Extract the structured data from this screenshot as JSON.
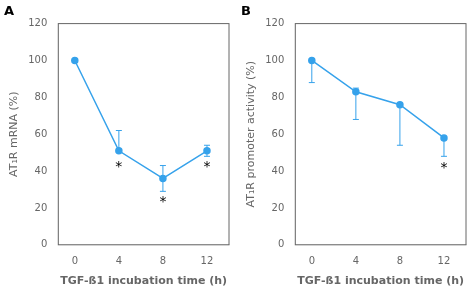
{
  "chart_data": [
    {
      "type": "line",
      "title": "A",
      "x": [
        0,
        4,
        8,
        12
      ],
      "values": [
        100,
        51,
        36,
        51
      ],
      "error_lower": [
        0,
        0,
        7,
        3
      ],
      "error_upper": [
        0,
        11,
        7,
        3
      ],
      "annotations": [
        {
          "x": 4,
          "y": 46,
          "text": "*"
        },
        {
          "x": 8,
          "y": 27,
          "text": "*"
        },
        {
          "x": 12,
          "y": 46,
          "text": "*"
        }
      ],
      "xlabel": "TGF-ß1 incubation time (h)",
      "ylabel": "AT₁R mRNA (%)",
      "xlim": [
        -1.5,
        14
      ],
      "xticks": [
        0,
        4,
        8,
        12
      ],
      "ylim": [
        0,
        120
      ],
      "yticks": [
        0,
        20,
        40,
        60,
        80,
        100,
        120
      ],
      "grid": false,
      "marker": "circle",
      "line_style": "solid"
    },
    {
      "type": "line",
      "title": "B",
      "x": [
        0,
        4,
        8,
        12
      ],
      "values": [
        100,
        83,
        76,
        58
      ],
      "error_lower": [
        12,
        15,
        22,
        10
      ],
      "error_upper": [
        0,
        2,
        0,
        0
      ],
      "annotations": [
        {
          "x": 12,
          "y": 45,
          "text": "*"
        }
      ],
      "xlabel": "TGF-ß1 incubation time (h)",
      "ylabel": "AT₁R promoter activity (%)",
      "xlim": [
        -1.5,
        14
      ],
      "xticks": [
        0,
        4,
        8,
        12
      ],
      "ylim": [
        0,
        120
      ],
      "yticks": [
        0,
        20,
        40,
        60,
        80,
        100,
        120
      ],
      "grid": false,
      "marker": "circle",
      "line_style": "solid"
    }
  ]
}
